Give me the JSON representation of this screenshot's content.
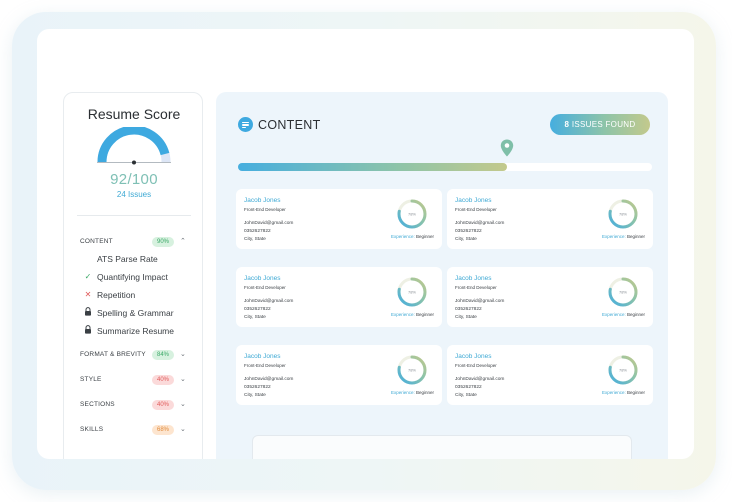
{
  "sidebar": {
    "title": "Resume Score",
    "gauge": {
      "fraction": 0.92,
      "fill_color": "#3ea9e0",
      "track_color": "#dde6f6"
    },
    "score": "92/100",
    "issues": "24 Issues",
    "categories": [
      {
        "label": "CONTENT",
        "badge": "90%",
        "badge_bg": "#d7f1df",
        "badge_color": "#3aa866",
        "chevron": "⌃"
      },
      {
        "label": "FORMAT & BREVITY",
        "badge": "84%",
        "badge_bg": "#d7f1df",
        "badge_color": "#3aa866",
        "chevron": "⌄"
      },
      {
        "label": "STYLE",
        "badge": "40%",
        "badge_bg": "#fbdada",
        "badge_color": "#e05a5a",
        "chevron": "⌄"
      },
      {
        "label": "SECTIONS",
        "badge": "40%",
        "badge_bg": "#fbdada",
        "badge_color": "#e05a5a",
        "chevron": "⌄"
      },
      {
        "label": "SKILLS",
        "badge": "68%",
        "badge_bg": "#fde5cf",
        "badge_color": "#e08a3c",
        "chevron": "⌄"
      }
    ],
    "content_items": [
      {
        "label": "ATS Parse Rate",
        "icon": "none"
      },
      {
        "label": "Quantifying Impact",
        "icon": "check-icon"
      },
      {
        "label": "Repetition",
        "icon": "cross-icon"
      },
      {
        "label": "Spelling & Grammar",
        "icon": "lock-icon"
      },
      {
        "label": "Summarize Resume",
        "icon": "lock-icon"
      }
    ]
  },
  "main": {
    "title": "CONTENT",
    "issues_count": "8",
    "issues_label": "ISSUES FOUND",
    "progress": {
      "fraction": 0.65
    },
    "cards": [
      {
        "name": "Jacob Jones",
        "role": "Front-End Developer",
        "email": "JohnDavid@gmail.com",
        "phone": "0352627822",
        "location": "City, State",
        "ring_percent": "78%",
        "exp_label": "Experience:",
        "exp_value": "Beginner"
      },
      {
        "name": "Jacob Jones",
        "role": "Front-End Developer",
        "email": "JohnDavid@gmail.com",
        "phone": "0352627822",
        "location": "City, State",
        "ring_percent": "78%",
        "exp_label": "Experience:",
        "exp_value": "Beginner"
      },
      {
        "name": "Jacob Jones",
        "role": "Front-End Developer",
        "email": "JohnDavid@gmail.com",
        "phone": "0352627822",
        "location": "City, State",
        "ring_percent": "78%",
        "exp_label": "Experience:",
        "exp_value": "Beginner"
      },
      {
        "name": "Jacob Jones",
        "role": "Front-End Developer",
        "email": "JohnDavid@gmail.com",
        "phone": "0352627822",
        "location": "City, State",
        "ring_percent": "78%",
        "exp_label": "Experience:",
        "exp_value": "Beginner"
      },
      {
        "name": "Jacob Jones",
        "role": "Front-End Developer",
        "email": "JohnDavid@gmail.com",
        "phone": "0352627822",
        "location": "City, State",
        "ring_percent": "78%",
        "exp_label": "Experience:",
        "exp_value": "Beginner"
      },
      {
        "name": "Jacob Jones",
        "role": "Front-End Developer",
        "email": "JohnDavid@gmail.com",
        "phone": "0352627822",
        "location": "City, State",
        "ring_percent": "78%",
        "exp_label": "Experience:",
        "exp_value": "Beginner"
      }
    ]
  },
  "colors": {
    "accent": "#3ea9e0",
    "accent_green": "#8ec4a8",
    "accent_olive": "#c3c98c",
    "panel_bg": "#edf5fb"
  }
}
